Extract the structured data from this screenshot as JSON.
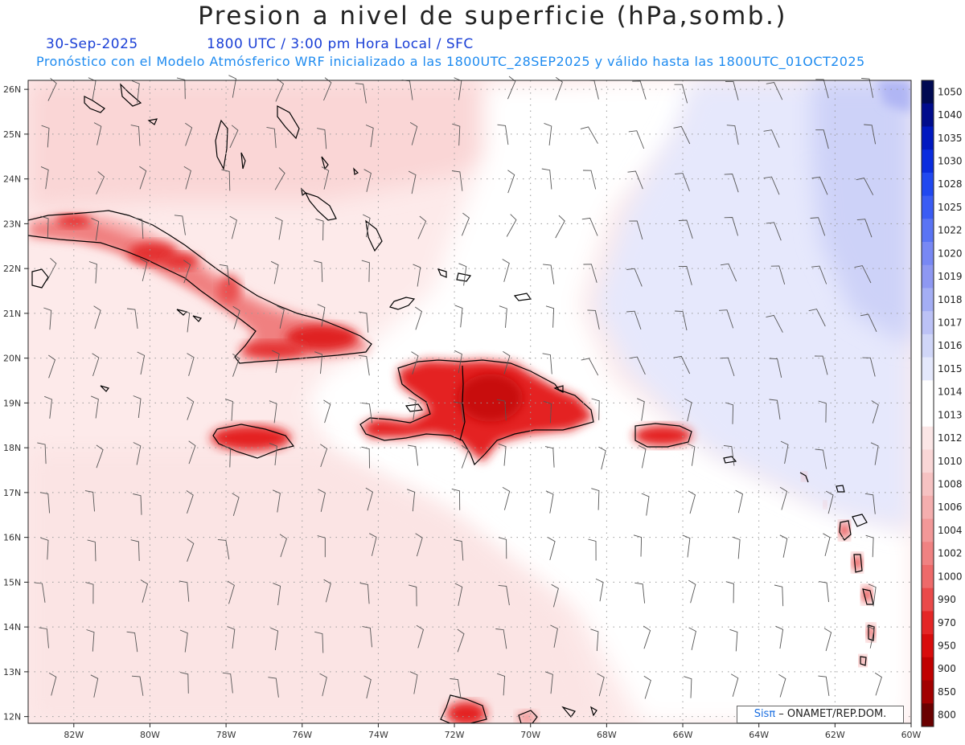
{
  "header": {
    "title": "Presion a nivel de superficie (hPa,somb.)",
    "date": "30-Sep-2025",
    "time_line": "1800 UTC / 3:00 pm Hora Local / SFC",
    "subtitle": "Pronóstico con el Modelo Atmósferico WRF inicializado a las 1800UTC_28SEP2025 y válido hasta las  1800UTC_01OCT2025"
  },
  "map": {
    "lat_labels": [
      "26N",
      "25N",
      "24N",
      "23N",
      "22N",
      "21N",
      "20N",
      "19N",
      "18N",
      "17N",
      "16N",
      "15N",
      "14N",
      "13N",
      "12N"
    ],
    "lon_labels": [
      "82W",
      "80W",
      "78W",
      "76W",
      "74W",
      "72W",
      "70W",
      "68W",
      "66W",
      "64W",
      "62W",
      "60W"
    ],
    "grid": "dotted",
    "regions": [
      "Cuba",
      "Jamaica",
      "Hispaniola",
      "Puerto Rico",
      "Bahamas",
      "Lesser Antilles"
    ]
  },
  "colorbar": {
    "labels": [
      "1050",
      "1040",
      "1035",
      "1030",
      "1028",
      "1025",
      "1022",
      "1020",
      "1019",
      "1018",
      "1017",
      "1016",
      "1015",
      "1014",
      "1013",
      "1012",
      "1010",
      "1008",
      "1006",
      "1004",
      "1002",
      "1000",
      "990",
      "970",
      "950",
      "900",
      "850",
      "800"
    ],
    "colors": [
      "#000a52",
      "#000c8c",
      "#0018c0",
      "#0a2cde",
      "#2048f0",
      "#3a5cf4",
      "#5a74f4",
      "#7888f4",
      "#8e98f2",
      "#a4aef4",
      "#bcc2f6",
      "#d0d6f8",
      "#e4e8fc",
      "#ffffff",
      "#ffffff",
      "#fbe6e6",
      "#f9d6d6",
      "#f6c2c2",
      "#f4aeae",
      "#f29898",
      "#f08282",
      "#ee6a6a",
      "#ea4a4a",
      "#e42626",
      "#d80c0c",
      "#c00000",
      "#a20000",
      "#6a0000"
    ]
  },
  "credit": {
    "brand": "Sisπ",
    "text": " – ONAMET/REP.DOM."
  }
}
